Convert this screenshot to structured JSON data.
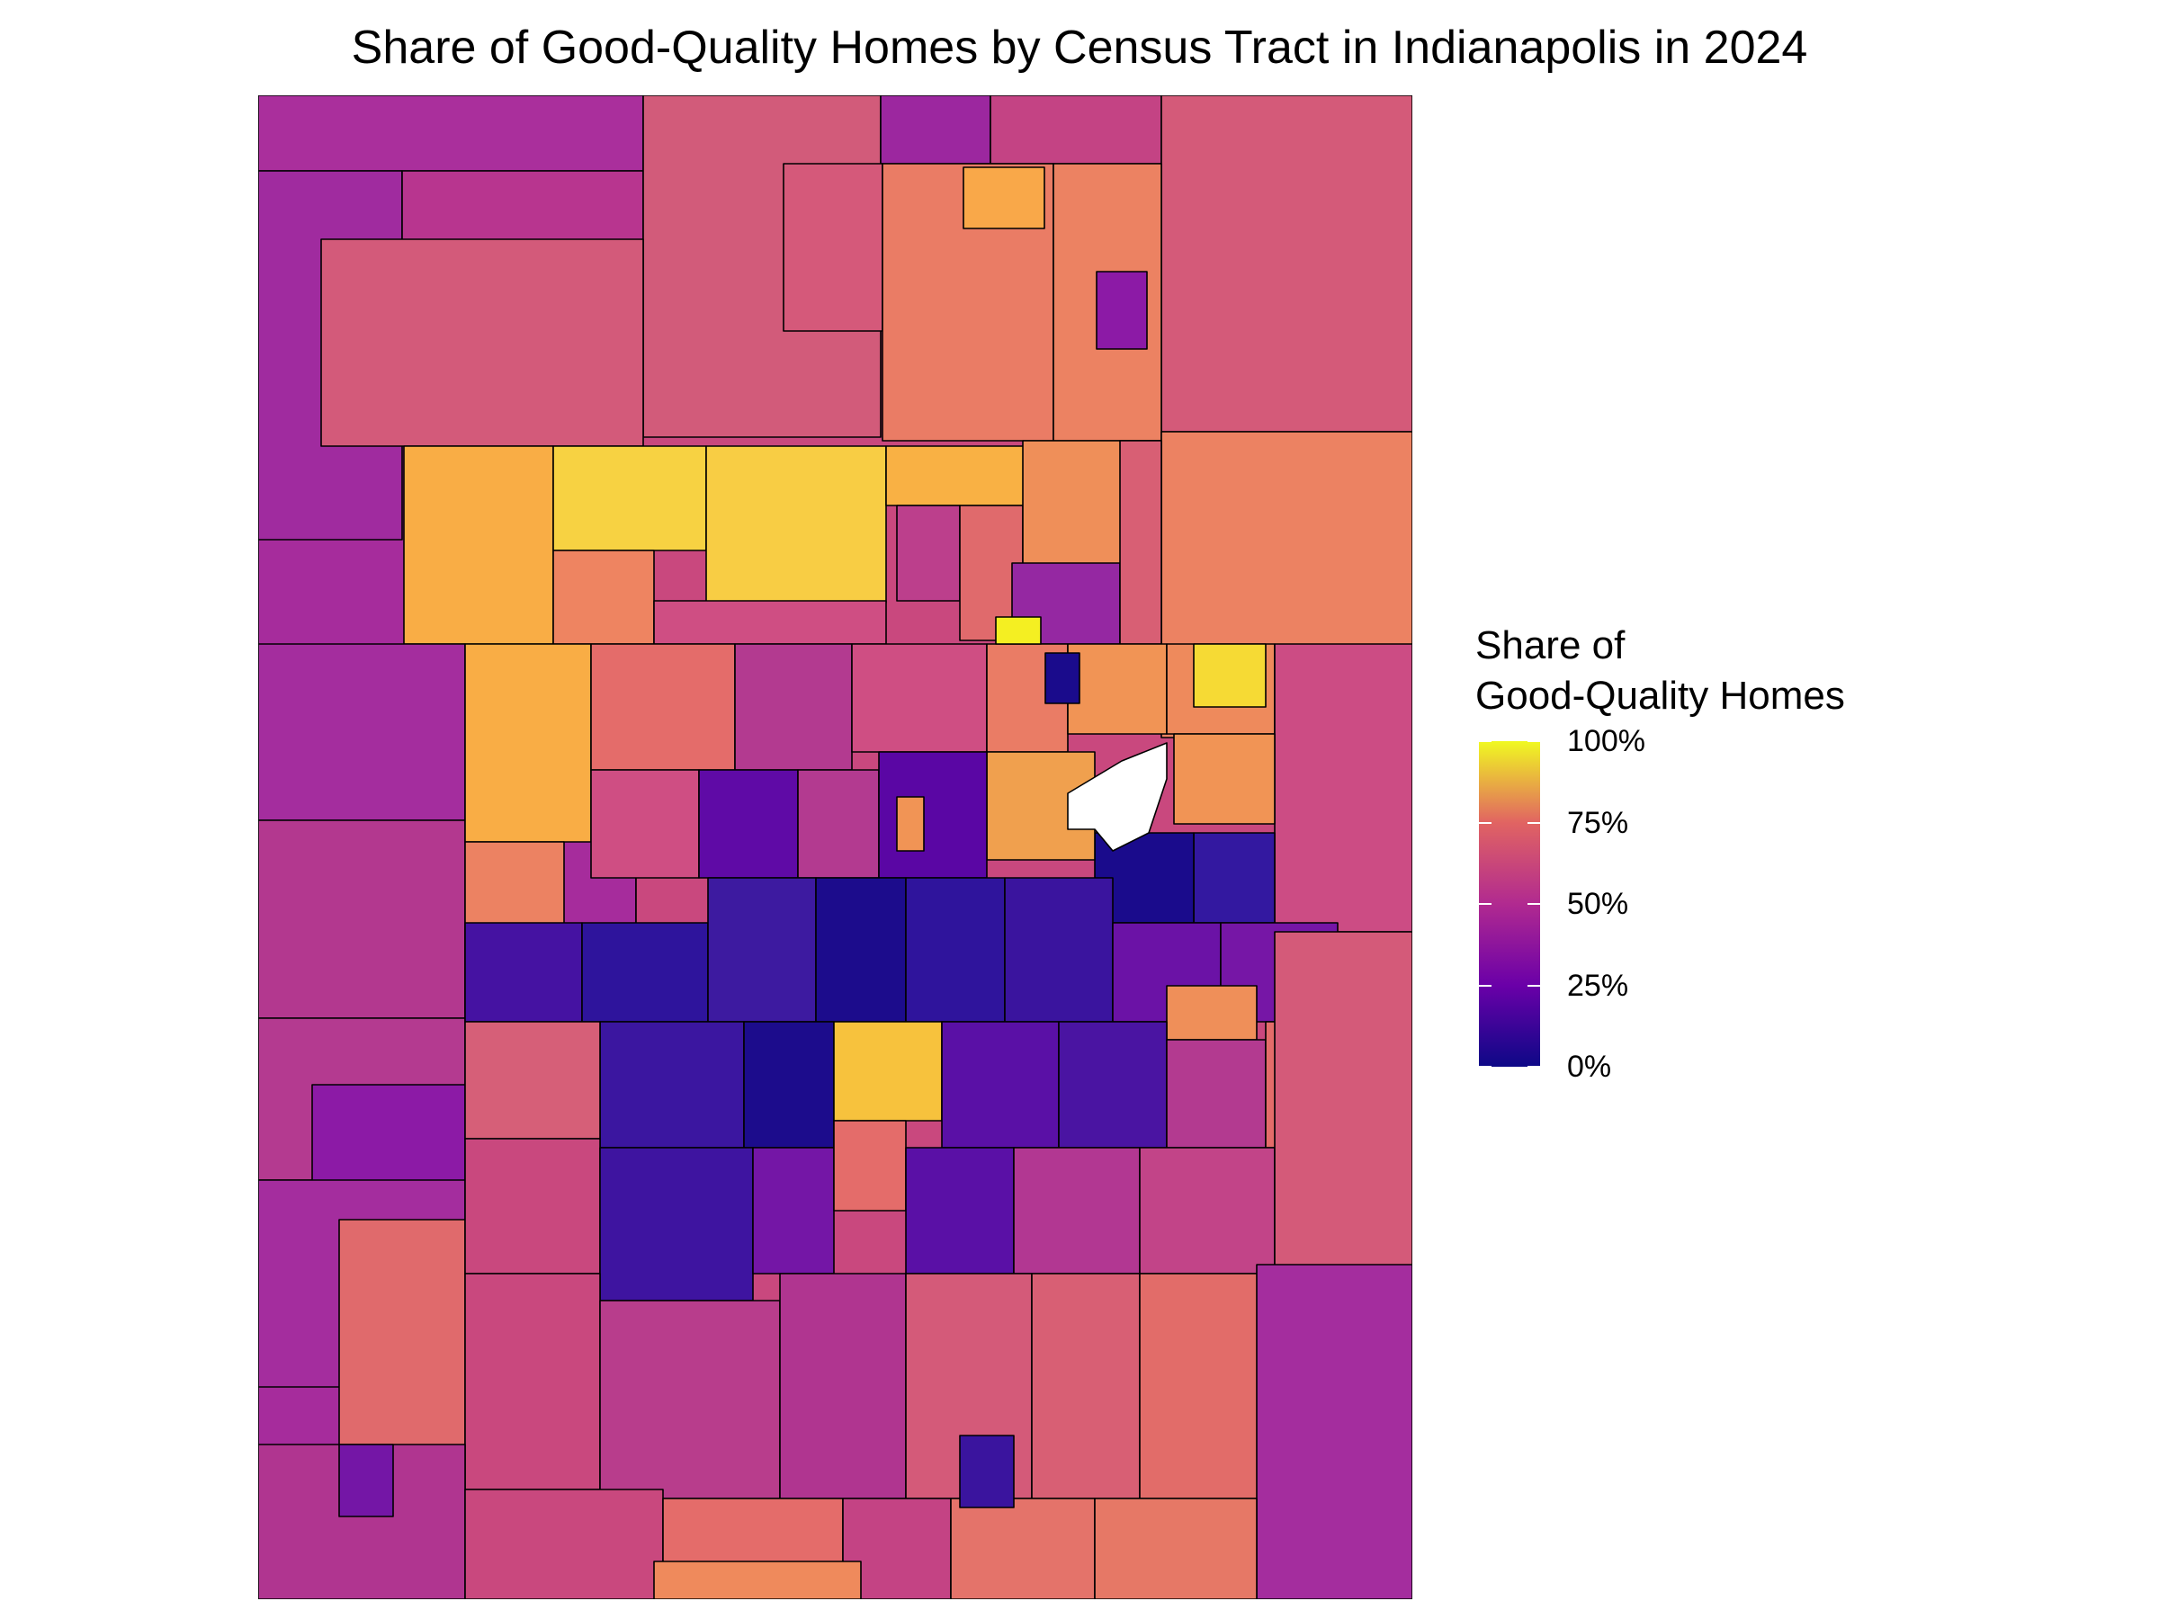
{
  "title": "Share of Good-Quality Homes by Census Tract in Indianapolis in 2024",
  "legend": {
    "title_line1": "Share of",
    "title_line2": "Good-Quality Homes",
    "ticks": [
      {
        "label": "100%",
        "value": 1.0
      },
      {
        "label": "75%",
        "value": 0.75
      },
      {
        "label": "50%",
        "value": 0.5
      },
      {
        "label": "25%",
        "value": 0.25
      },
      {
        "label": "0%",
        "value": 0.0
      }
    ]
  },
  "colors": {
    "c0": "#0d0887",
    "c25": "#6a00a8",
    "c50": "#b12a90",
    "c75": "#e16462",
    "c100": "#f0f921",
    "missing": "#ffffff",
    "border": "#000000"
  }
}
